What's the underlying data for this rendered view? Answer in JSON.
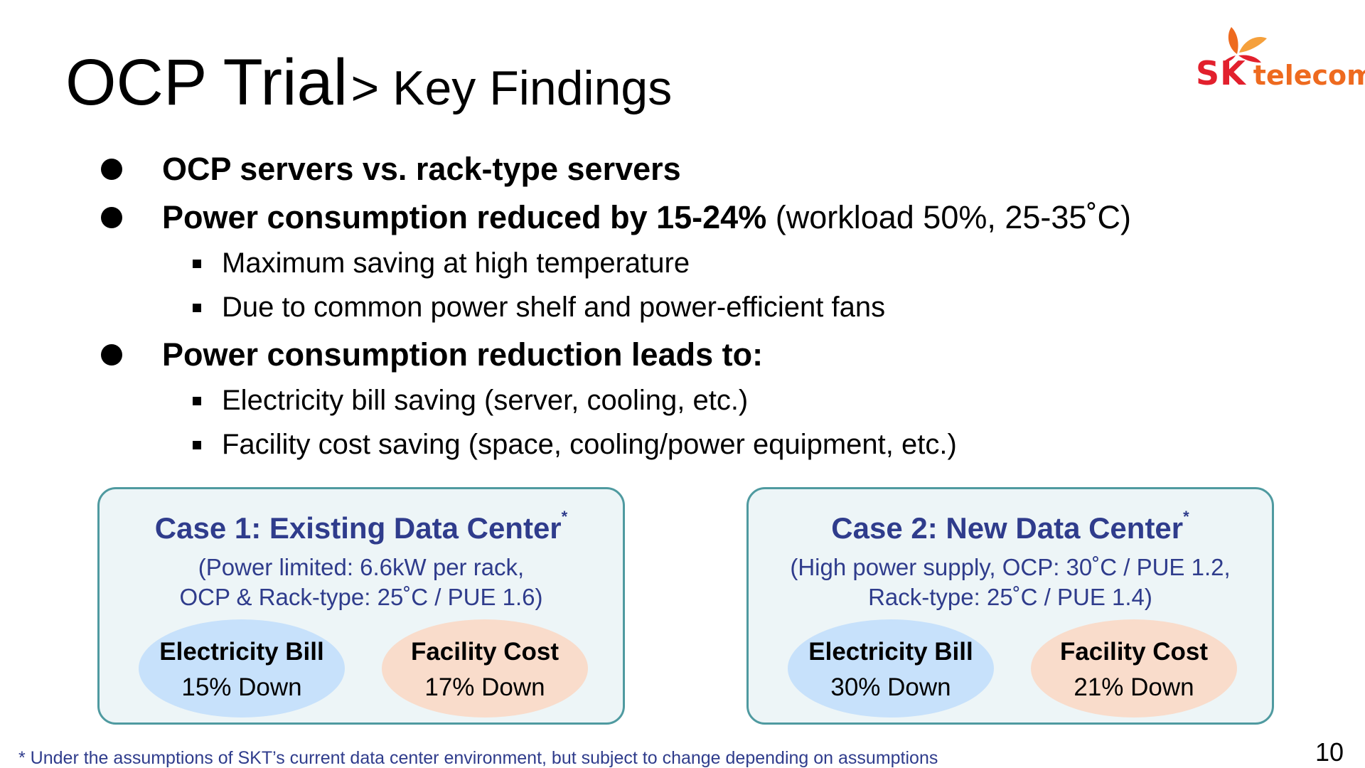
{
  "title": {
    "main": "OCP Trial",
    "sub": "> Key Findings"
  },
  "logo": {
    "sk": "SK",
    "telecom": "telecom",
    "brand_red": "#e2202d",
    "brand_orange": "#ee6a1f"
  },
  "bullets": {
    "b1": {
      "text": "OCP servers vs. rack-type servers"
    },
    "b2": {
      "bold": "Power consumption reduced by 15-24%",
      "normal": " (workload 50%, 25-35˚C)"
    },
    "b2_sub1": "Maximum saving at high temperature",
    "b2_sub2": "Due to common power shelf and power-efficient fans",
    "b3": {
      "text": "Power consumption reduction leads to:"
    },
    "b3_sub1": "Electricity bill saving (server, cooling, etc.)",
    "b3_sub2": "Facility cost saving (space, cooling/power equipment, etc.)"
  },
  "cases": [
    {
      "title": "Case 1: Existing Data Center",
      "marker": "*",
      "line1": "(Power limited: 6.6kW per rack,",
      "line2": "OCP & Rack-type: 25˚C / PUE 1.6)",
      "bill_label": "Electricity Bill",
      "bill_value": "15% Down",
      "facility_label": "Facility Cost",
      "facility_value": "17% Down"
    },
    {
      "title": "Case 2: New Data Center",
      "marker": "*",
      "line1": "(High power supply, OCP: 30˚C / PUE 1.2,",
      "line2": "Rack-type: 25˚C / PUE 1.4)",
      "bill_label": "Electricity Bill",
      "bill_value": "30% Down",
      "facility_label": "Facility Cost",
      "facility_value": "21% Down"
    }
  ],
  "colors": {
    "case_text": "#2f3c8c",
    "box_border": "#4f9aa0",
    "box_fill": "#edf5f7",
    "bill_fill": "#c7e1fb",
    "facility_fill": "#f9dccb"
  },
  "footnote": "* Under the assumptions of SKT’s current data center environment, but subject to change depending on assumptions",
  "page_number": "10"
}
